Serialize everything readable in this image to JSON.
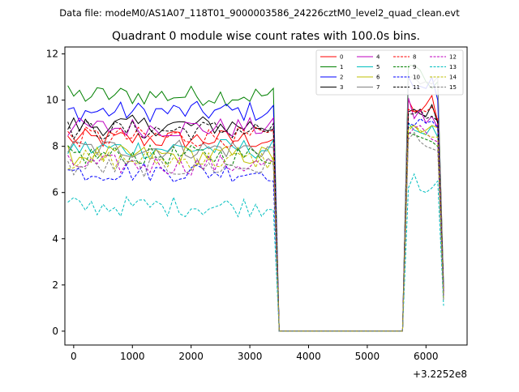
{
  "header": {
    "data_file": "Data file: modeM0/AS1A07_118T01_9000003586_24226cztM0_level2_quad_clean.evt"
  },
  "chart_data": {
    "type": "line",
    "title": "Quadrant 0 module wise count rates with 100.0s bins.",
    "xlabel": "",
    "ylabel": "",
    "x_offset_label": "+3.2252e8",
    "xlim": [
      -150,
      6700
    ],
    "ylim": [
      -0.6,
      12.3
    ],
    "x_ticks": [
      0,
      1000,
      2000,
      3000,
      4000,
      5000,
      6000
    ],
    "x_tick_labels": [
      "0",
      "1000",
      "2000",
      "3000",
      "4000",
      "5000",
      "6000"
    ],
    "y_ticks": [
      0,
      2,
      4,
      6,
      8,
      10,
      12
    ],
    "y_tick_labels": [
      "0",
      "2",
      "4",
      "6",
      "8",
      "10",
      "12"
    ],
    "grid": false,
    "legend_placement": "top-right",
    "segment1": {
      "x_start": -100,
      "step": 100,
      "count": 36
    },
    "gap": {
      "x_start": 3500,
      "x_end": 5600,
      "value": 0
    },
    "segment2": {
      "x_start": 5700,
      "step": 100,
      "count": 7
    },
    "series": [
      {
        "name": "0",
        "color": "#ff0000",
        "dash": "solid",
        "base": 8.3,
        "seg2": [
          10.0,
          9.5,
          9.5,
          9.8,
          10.2,
          9.0,
          1.5
        ]
      },
      {
        "name": "1",
        "color": "#008000",
        "dash": "solid",
        "base": 10.2,
        "seg2": [
          11.5,
          11.5,
          11.3,
          10.8,
          10.5,
          10.8,
          2.0
        ]
      },
      {
        "name": "2",
        "color": "#0000ff",
        "dash": "solid",
        "base": 9.5,
        "seg2": [
          11.0,
          10.5,
          10.6,
          10.5,
          11.0,
          10.0,
          1.8
        ]
      },
      {
        "name": "3",
        "color": "#000000",
        "dash": "solid",
        "base": 8.9,
        "seg2": [
          9.5,
          9.6,
          9.4,
          9.3,
          9.8,
          9.0,
          1.6
        ]
      },
      {
        "name": "4",
        "color": "#bf00bf",
        "dash": "solid",
        "base": 8.8,
        "seg2": [
          10.1,
          9.2,
          9.6,
          9.0,
          9.3,
          8.8,
          1.5
        ]
      },
      {
        "name": "5",
        "color": "#00bfbf",
        "dash": "solid",
        "base": 7.9,
        "seg2": [
          9.0,
          8.7,
          8.6,
          8.5,
          8.9,
          8.4,
          1.4
        ]
      },
      {
        "name": "6",
        "color": "#bfbf00",
        "dash": "solid",
        "base": 7.6,
        "seg2": [
          8.8,
          8.9,
          8.6,
          8.7,
          8.9,
          8.8,
          1.4
        ]
      },
      {
        "name": "7",
        "color": "#808080",
        "dash": "solid",
        "base": 7.9,
        "seg2": [
          11.0,
          11.0,
          10.7,
          10.8,
          10.7,
          11.0,
          1.8
        ]
      },
      {
        "name": "8",
        "color": "#ff0000",
        "dash": "dashed",
        "base": 8.4,
        "seg2": [
          9.6,
          9.5,
          9.6,
          9.5,
          9.7,
          9.2,
          1.6
        ]
      },
      {
        "name": "9",
        "color": "#008000",
        "dash": "dashed",
        "base": 7.6,
        "seg2": [
          8.6,
          8.5,
          8.4,
          8.3,
          8.2,
          8.0,
          1.5
        ]
      },
      {
        "name": "10",
        "color": "#0000ff",
        "dash": "dashed",
        "base": 6.9,
        "seg2": [
          9.0,
          8.9,
          9.2,
          9.0,
          9.1,
          8.8,
          1.5
        ]
      },
      {
        "name": "11",
        "color": "#000000",
        "dash": "dashed",
        "base": 8.7,
        "seg2": [
          9.4,
          9.4,
          9.6,
          9.2,
          9.3,
          9.1,
          1.6
        ]
      },
      {
        "name": "12",
        "color": "#bf00bf",
        "dash": "dashed",
        "base": 7.2,
        "seg2": [
          8.5,
          8.8,
          8.9,
          8.6,
          8.3,
          8.2,
          1.4
        ]
      },
      {
        "name": "13",
        "color": "#00bfbf",
        "dash": "dashed",
        "base": 5.4,
        "seg2": [
          6.2,
          6.8,
          6.1,
          6.0,
          6.2,
          6.5,
          1.1
        ]
      },
      {
        "name": "14",
        "color": "#bfbf00",
        "dash": "dashed",
        "base": 7.4,
        "seg2": [
          8.7,
          8.9,
          8.7,
          8.5,
          8.4,
          8.4,
          1.4
        ]
      },
      {
        "name": "15",
        "color": "#808080",
        "dash": "dashed",
        "base": 7.1,
        "seg2": [
          8.3,
          8.6,
          8.2,
          8.0,
          7.9,
          7.8,
          1.3
        ]
      }
    ]
  }
}
